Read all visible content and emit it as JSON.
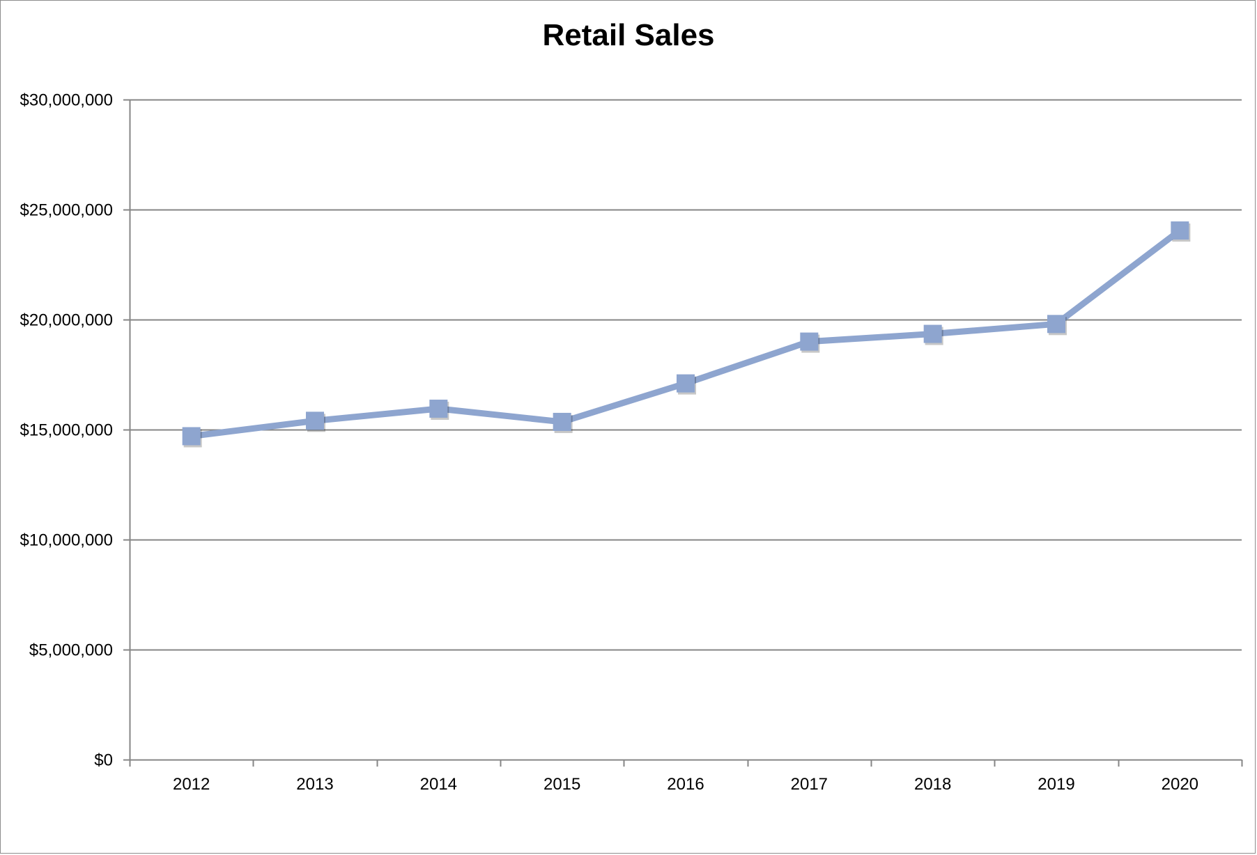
{
  "chart_data": {
    "type": "line",
    "title": "Retail Sales",
    "xlabel": "",
    "ylabel": "",
    "categories": [
      "2012",
      "2013",
      "2014",
      "2015",
      "2016",
      "2017",
      "2018",
      "2019",
      "2020"
    ],
    "series": [
      {
        "values": [
          14700000,
          15400000,
          15950000,
          15350000,
          17100000,
          19000000,
          19350000,
          19800000,
          24050000
        ],
        "color": "#8ea5cf",
        "marker": "square"
      }
    ],
    "ylim": [
      0,
      30000000
    ],
    "yticks": [
      {
        "value": 0,
        "label": "$0"
      },
      {
        "value": 5000000,
        "label": "$5,000,000"
      },
      {
        "value": 10000000,
        "label": "$10,000,000"
      },
      {
        "value": 15000000,
        "label": "$15,000,000"
      },
      {
        "value": 20000000,
        "label": "$20,000,000"
      },
      {
        "value": 25000000,
        "label": "$25,000,000"
      },
      {
        "value": 30000000,
        "label": "$30,000,000"
      }
    ],
    "grid": true,
    "legend": "none"
  }
}
